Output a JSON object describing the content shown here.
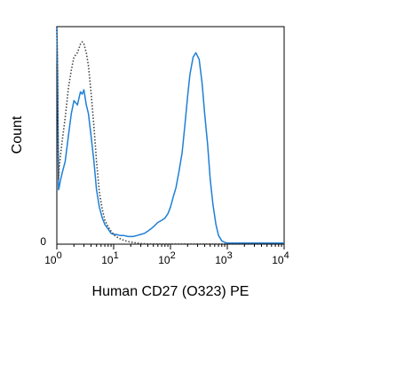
{
  "chart_data": {
    "type": "line",
    "title": "",
    "xlabel": "Human CD27 (O323) PE",
    "ylabel": "Count",
    "x_scale": "log",
    "xlim": [
      1,
      10000
    ],
    "ylim": [
      0,
      100
    ],
    "grid": false,
    "legend": "none",
    "y_ticks": [
      {
        "value": 0,
        "label": "0"
      }
    ],
    "x_ticks": [
      {
        "value": 1,
        "base": "10",
        "exp": "0"
      },
      {
        "value": 10,
        "base": "10",
        "exp": "1"
      },
      {
        "value": 100,
        "base": "10",
        "exp": "2"
      },
      {
        "value": 1000,
        "base": "10",
        "exp": "3"
      },
      {
        "value": 10000,
        "base": "10",
        "exp": "4"
      }
    ],
    "series": [
      {
        "style": "solid",
        "color": "#1e7fd8",
        "x": [
          1.0,
          1.03,
          1.07,
          1.1,
          1.15,
          1.25,
          1.4,
          1.6,
          1.8,
          2.0,
          2.3,
          2.6,
          2.8,
          3.0,
          3.3,
          3.6,
          4.0,
          4.5,
          5.0,
          5.6,
          6.3,
          7.0,
          8.0,
          9.0,
          10,
          11,
          13,
          15,
          18,
          22,
          26,
          30,
          35,
          40,
          45,
          50,
          55,
          60,
          70,
          80,
          90,
          100,
          110,
          125,
          140,
          160,
          180,
          200,
          220,
          250,
          280,
          320,
          360,
          400,
          450,
          500,
          560,
          630,
          700,
          800,
          900,
          1000,
          1200,
          1500,
          2000,
          3000,
          5000,
          10000
        ],
        "y": [
          100,
          80,
          25,
          26,
          29,
          33,
          38,
          50,
          60,
          66,
          64,
          70,
          69,
          71,
          64,
          60,
          50,
          38,
          25,
          17,
          12,
          9,
          7,
          5,
          4.5,
          4.5,
          4,
          4,
          3.5,
          3.5,
          4,
          4.5,
          5,
          6,
          7,
          8,
          9,
          10,
          11,
          12,
          14,
          17,
          21,
          26,
          33,
          42,
          55,
          68,
          78,
          86,
          88,
          85,
          74,
          60,
          46,
          30,
          18,
          9,
          4,
          1.5,
          0.8,
          0.5,
          0.5,
          0.5,
          0.5,
          0.5,
          0.5,
          0.5
        ]
      },
      {
        "style": "dotted",
        "color": "#444444",
        "x": [
          1.0,
          1.03,
          1.07,
          1.1,
          1.15,
          1.25,
          1.4,
          1.6,
          1.8,
          2.0,
          2.3,
          2.6,
          2.8,
          3.0,
          3.3,
          3.6,
          4.0,
          4.5,
          5.0,
          5.6,
          6.3,
          7.0,
          8.0,
          9.0,
          10,
          11,
          13,
          15,
          18,
          22,
          26,
          30,
          35,
          40,
          50,
          60,
          80,
          100,
          150,
          200,
          300,
          500,
          1000,
          10000
        ],
        "y": [
          100,
          80,
          30,
          35,
          40,
          48,
          58,
          72,
          80,
          86,
          88,
          92,
          93,
          92,
          88,
          82,
          70,
          54,
          38,
          24,
          16,
          11,
          8,
          6,
          4.5,
          3.5,
          2.5,
          1.8,
          1.2,
          0.8,
          0.5,
          0.3,
          0.2,
          0.1,
          0.1,
          0.1,
          0.1,
          0.1,
          0.1,
          0.1,
          0.1,
          0.1,
          0.1,
          0.1
        ]
      }
    ]
  }
}
